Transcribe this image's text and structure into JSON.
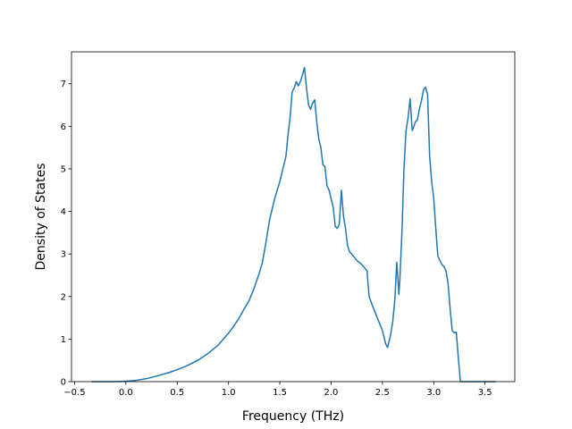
{
  "chart_data": {
    "type": "line",
    "xlabel": "Frequency (THz)",
    "ylabel": "Density of States",
    "xlim": [
      -0.53,
      3.79
    ],
    "ylim": [
      0,
      7.75
    ],
    "xticks": [
      -0.5,
      0.0,
      0.5,
      1.0,
      1.5,
      2.0,
      2.5,
      3.0,
      3.5
    ],
    "xtick_labels": [
      "−0.5",
      "0.0",
      "0.5",
      "1.0",
      "1.5",
      "2.0",
      "2.5",
      "3.0",
      "3.5"
    ],
    "yticks": [
      0,
      1,
      2,
      3,
      4,
      5,
      6,
      7
    ],
    "ytick_labels": [
      "0",
      "1",
      "2",
      "3",
      "4",
      "5",
      "6",
      "7"
    ],
    "grid": false,
    "line_color": "#1f77b4",
    "series": [
      {
        "x": [
          -0.33,
          -0.1,
          0.0,
          0.1,
          0.2,
          0.3,
          0.4,
          0.5,
          0.6,
          0.7,
          0.8,
          0.9,
          1.0,
          1.05,
          1.1,
          1.15,
          1.2,
          1.25,
          1.3,
          1.33,
          1.36,
          1.4,
          1.45,
          1.5,
          1.53,
          1.56,
          1.58,
          1.6,
          1.62,
          1.64,
          1.66,
          1.68,
          1.7,
          1.72,
          1.74,
          1.76,
          1.78,
          1.8,
          1.82,
          1.84,
          1.86,
          1.88,
          1.9,
          1.92,
          1.94,
          1.96,
          1.98,
          2.0,
          2.02,
          2.04,
          2.06,
          2.08,
          2.1,
          2.12,
          2.14,
          2.16,
          2.18,
          2.2,
          2.25,
          2.3,
          2.35,
          2.37,
          2.4,
          2.45,
          2.5,
          2.53,
          2.55,
          2.58,
          2.6,
          2.62,
          2.64,
          2.65,
          2.66,
          2.67,
          2.69,
          2.71,
          2.73,
          2.75,
          2.77,
          2.79,
          2.8,
          2.82,
          2.84,
          2.86,
          2.88,
          2.9,
          2.92,
          2.94,
          2.96,
          2.98,
          3.0,
          3.02,
          3.04,
          3.06,
          3.08,
          3.1,
          3.12,
          3.14,
          3.16,
          3.18,
          3.2,
          3.22,
          3.24,
          3.26,
          3.28,
          3.6
        ],
        "y": [
          0,
          0,
          0.01,
          0.03,
          0.07,
          0.13,
          0.2,
          0.28,
          0.38,
          0.5,
          0.66,
          0.86,
          1.14,
          1.3,
          1.48,
          1.7,
          1.9,
          2.2,
          2.55,
          2.8,
          3.2,
          3.8,
          4.3,
          4.7,
          5.0,
          5.3,
          5.8,
          6.2,
          6.8,
          6.9,
          7.05,
          6.95,
          7.05,
          7.2,
          7.38,
          6.9,
          6.5,
          6.4,
          6.55,
          6.62,
          6.1,
          5.7,
          5.5,
          5.1,
          5.05,
          4.6,
          4.5,
          4.3,
          4.1,
          3.65,
          3.6,
          3.7,
          4.5,
          3.9,
          3.6,
          3.2,
          3.05,
          3.0,
          2.85,
          2.75,
          2.6,
          2.0,
          1.8,
          1.5,
          1.2,
          0.9,
          0.8,
          1.1,
          1.4,
          1.9,
          2.8,
          2.45,
          2.05,
          2.4,
          3.5,
          5.0,
          5.9,
          6.2,
          6.65,
          5.9,
          5.95,
          6.1,
          6.15,
          6.4,
          6.6,
          6.85,
          6.92,
          6.75,
          5.3,
          4.7,
          4.3,
          3.6,
          2.95,
          2.85,
          2.75,
          2.7,
          2.6,
          2.3,
          1.7,
          1.2,
          1.15,
          1.16,
          0.55,
          0.0,
          0.0,
          0.0
        ]
      }
    ]
  }
}
